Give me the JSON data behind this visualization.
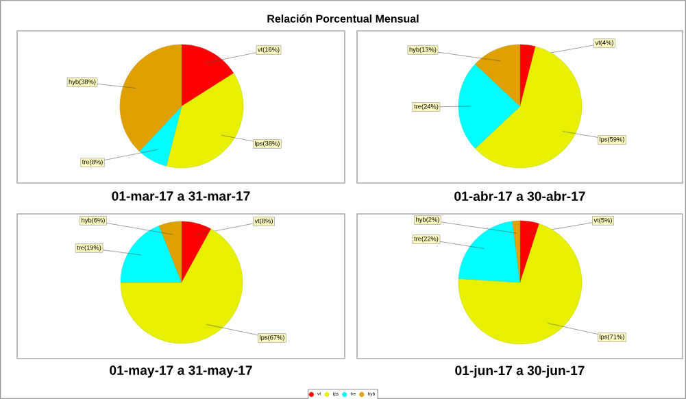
{
  "chart_data": [
    {
      "type": "pie",
      "title": "Relación Porcentual Mensual",
      "xlabel": "01-mar-17 a 31-mar-17",
      "categories": [
        "vt",
        "lps",
        "tre",
        "hyb"
      ],
      "values": [
        16,
        38,
        8,
        38
      ],
      "colors": [
        "#ff0000",
        "#e6f000",
        "#00ffff",
        "#e0a000"
      ],
      "value_labels": [
        "(16%)",
        "(38%)",
        "(8%)",
        "(38%)"
      ]
    },
    {
      "type": "pie",
      "xlabel": "01-abr-17 a 30-abr-17",
      "categories": [
        "vt",
        "lps",
        "tre",
        "hyb"
      ],
      "values": [
        4,
        59,
        24,
        13
      ],
      "colors": [
        "#ff0000",
        "#e6f000",
        "#00ffff",
        "#e0a000"
      ],
      "value_labels": [
        "(4%)",
        "(59%)",
        "(24%)",
        "(13%)"
      ]
    },
    {
      "type": "pie",
      "xlabel": "01-may-17 a 31-may-17",
      "categories": [
        "vt",
        "lps",
        "tre",
        "hyb"
      ],
      "values": [
        8,
        67,
        19,
        6
      ],
      "colors": [
        "#ff0000",
        "#e6f000",
        "#00ffff",
        "#e0a000"
      ],
      "value_labels": [
        "(8%)",
        "(67%)",
        "(19%)",
        "(6%)"
      ]
    },
    {
      "type": "pie",
      "xlabel": "01-jun-17 a 30-jun-17",
      "categories": [
        "vt",
        "lps",
        "tre",
        "hyb"
      ],
      "values": [
        5,
        71,
        22,
        2
      ],
      "colors": [
        "#ff0000",
        "#e6f000",
        "#00ffff",
        "#e0a000"
      ],
      "value_labels": [
        "(5%)",
        "(71%)",
        "(22%)",
        "(2%)"
      ],
      "legend": "bottom"
    }
  ]
}
